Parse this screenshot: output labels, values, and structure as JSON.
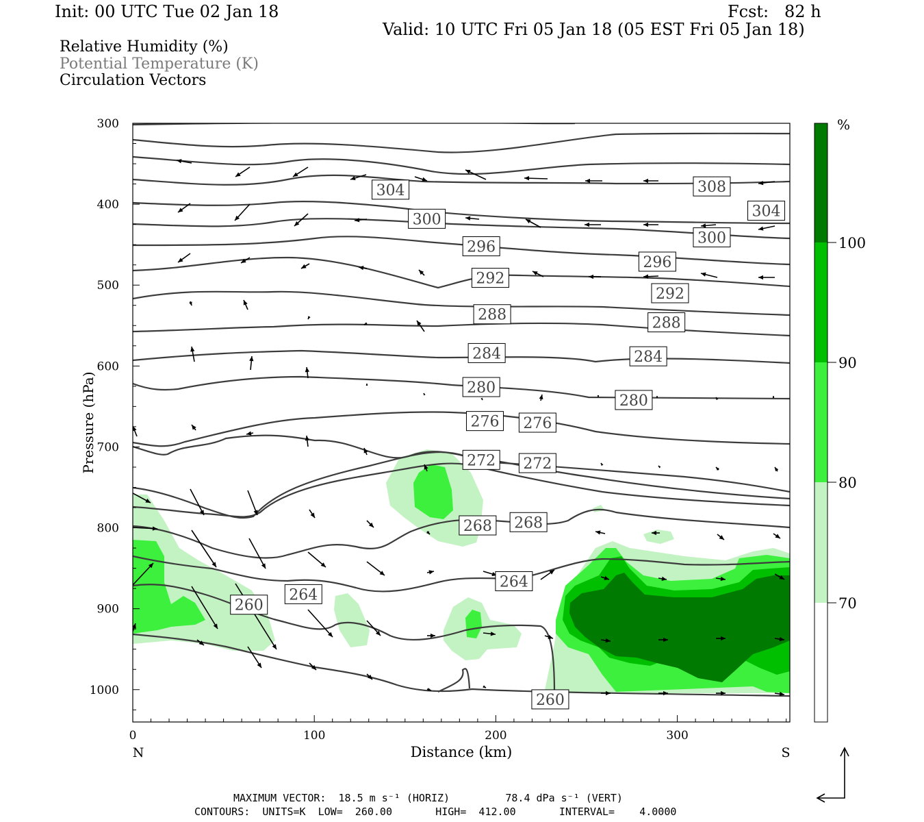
{
  "header": {
    "init": "Init: 00 UTC Tue 02 Jan 18",
    "fcst": "Fcst:   82 h",
    "valid": "Valid: 10 UTC Fri 05 Jan 18 (05 EST Fri 05 Jan 18)"
  },
  "legend": {
    "line1": "Relative Humidity (%)",
    "line2": "Potential Temperature (K)",
    "line3": "Circulation Vectors"
  },
  "footer": {
    "line1": "MAXIMUM VECTOR:  18.5 m s⁻¹ (HORIZ)         78.4 dPa s⁻¹ (VERT)",
    "line2": "CONTOURS:  UNITS=K  LOW=  260.00       HIGH=  412.00       INTERVAL=    4.0000"
  },
  "colors": {
    "rh70": "#c3f2c3",
    "rh80": "#3ef03e",
    "rh90": "#00be00",
    "rh100": "#007a00",
    "contour": "#3c3c3c"
  },
  "chart_data": {
    "type": "cross-section",
    "xlabel": "Distance (km)",
    "ylabel": "Pressure (hPa)",
    "xlim": [
      0,
      362
    ],
    "ylim": [
      1040,
      300
    ],
    "x_ticks": [
      "0",
      "100",
      "200",
      "300"
    ],
    "y_ticks": [
      "300",
      "400",
      "500",
      "600",
      "700",
      "800",
      "900",
      "1000"
    ],
    "x_end_labels": {
      "left": "N",
      "right": "S"
    },
    "colorbar": {
      "unit": "%",
      "levels": [
        "70",
        "80",
        "90",
        "100"
      ]
    },
    "theta_labels": [
      {
        "text": "304",
        "x": 142,
        "p": 382
      },
      {
        "text": "308",
        "x": 319,
        "p": 378
      },
      {
        "text": "304",
        "x": 349,
        "p": 408
      },
      {
        "text": "300",
        "x": 162,
        "p": 418
      },
      {
        "text": "300",
        "x": 319,
        "p": 441
      },
      {
        "text": "296",
        "x": 192,
        "p": 452
      },
      {
        "text": "296",
        "x": 289,
        "p": 471
      },
      {
        "text": "292",
        "x": 197,
        "p": 491
      },
      {
        "text": "292",
        "x": 296,
        "p": 510
      },
      {
        "text": "288",
        "x": 198,
        "p": 536
      },
      {
        "text": "288",
        "x": 294,
        "p": 546
      },
      {
        "text": "284",
        "x": 195,
        "p": 584
      },
      {
        "text": "284",
        "x": 284,
        "p": 588
      },
      {
        "text": "280",
        "x": 192,
        "p": 626
      },
      {
        "text": "280",
        "x": 276,
        "p": 642
      },
      {
        "text": "276",
        "x": 194,
        "p": 668
      },
      {
        "text": "276",
        "x": 223,
        "p": 670
      },
      {
        "text": "272",
        "x": 192,
        "p": 716
      },
      {
        "text": "272",
        "x": 223,
        "p": 720
      },
      {
        "text": "268",
        "x": 190,
        "p": 797
      },
      {
        "text": "268",
        "x": 218,
        "p": 793
      },
      {
        "text": "264",
        "x": 210,
        "p": 866
      },
      {
        "text": "264",
        "x": 94,
        "p": 882
      },
      {
        "text": "260",
        "x": 64,
        "p": 895
      },
      {
        "text": "260",
        "x": 230,
        "p": 1012
      }
    ]
  }
}
